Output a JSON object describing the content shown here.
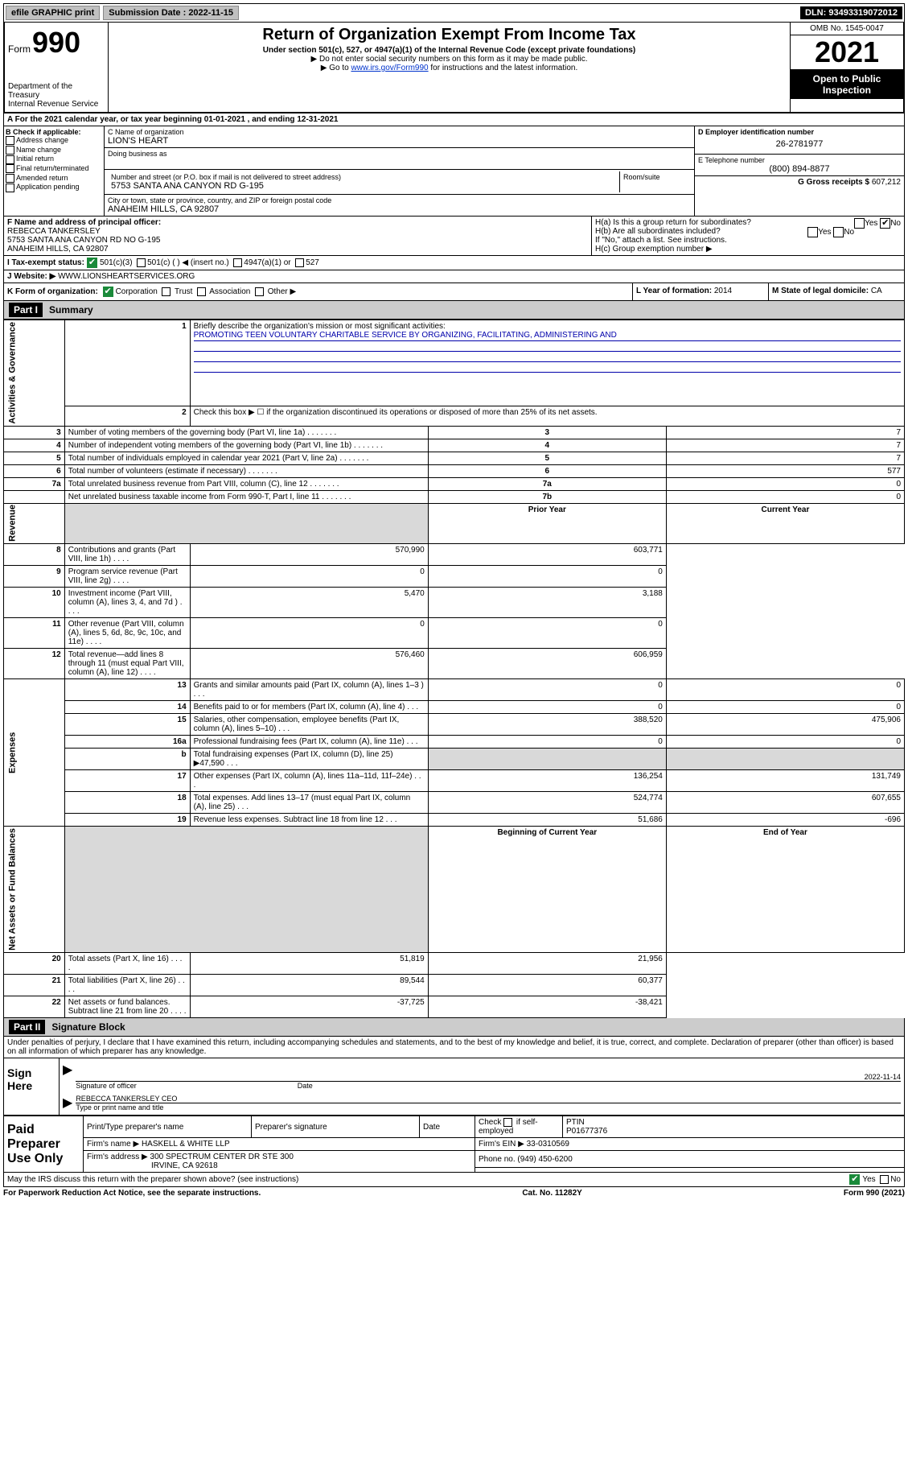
{
  "top": {
    "efile": "efile GRAPHIC print",
    "sub_label": "Submission Date : 2022-11-15",
    "dln": "DLN: 93493319072012"
  },
  "header": {
    "form_word": "Form",
    "form_no": "990",
    "dept": "Department of the Treasury",
    "irs": "Internal Revenue Service",
    "title": "Return of Organization Exempt From Income Tax",
    "sub": "Under section 501(c), 527, or 4947(a)(1) of the Internal Revenue Code (except private foundations)",
    "instr1": "▶ Do not enter social security numbers on this form as it may be made public.",
    "instr2_pre": "▶ Go to ",
    "instr2_link": "www.irs.gov/Form990",
    "instr2_post": " for instructions and the latest information.",
    "omb": "OMB No. 1545-0047",
    "year": "2021",
    "open": "Open to Public Inspection"
  },
  "rowA": "A For the 2021 calendar year, or tax year beginning 01-01-2021   , and ending 12-31-2021",
  "boxB": {
    "label": "B Check if applicable:",
    "items": [
      "Address change",
      "Name change",
      "Initial return",
      "Final return/terminated",
      "Amended return",
      "Application pending"
    ]
  },
  "boxC": {
    "name_lbl": "C Name of organization",
    "name": "LION'S HEART",
    "dba_lbl": "Doing business as",
    "addr_lbl": "Number and street (or P.O. box if mail is not delivered to street address)",
    "room_lbl": "Room/suite",
    "addr": "5753 SANTA ANA CANYON RD G-195",
    "city_lbl": "City or town, state or province, country, and ZIP or foreign postal code",
    "city": "ANAHEIM HILLS, CA  92807"
  },
  "boxD": {
    "lbl": "D Employer identification number",
    "val": "26-2781977"
  },
  "boxE": {
    "lbl": "E Telephone number",
    "val": "(800) 894-8877"
  },
  "boxG": {
    "lbl": "G Gross receipts $",
    "val": "607,212"
  },
  "boxF": {
    "lbl": "F Name and address of principal officer:",
    "l1": "REBECCA TANKERSLEY",
    "l2": "5753 SANTA ANA CANYON RD NO G-195",
    "l3": "ANAHEIM HILLS, CA  92807"
  },
  "boxH": {
    "ha": "H(a)  Is this a group return for subordinates?",
    "hb": "H(b)  Are all subordinates included?",
    "hb2": "If \"No,\" attach a list. See instructions.",
    "hc": "H(c)  Group exemption number ▶",
    "yes": "Yes",
    "no": "No"
  },
  "rowI": {
    "lbl": "I   Tax-exempt status:",
    "o1": "501(c)(3)",
    "o2": "501(c) (  ) ◀ (insert no.)",
    "o3": "4947(a)(1) or",
    "o4": "527"
  },
  "rowJ": {
    "lbl": "J   Website: ▶",
    "val": "WWW.LIONSHEARTSERVICES.ORG"
  },
  "rowK": "K Form of organization:",
  "rowK_opts": [
    "Corporation",
    "Trust",
    "Association",
    "Other ▶"
  ],
  "rowL": {
    "lbl": "L Year of formation:",
    "val": "2014"
  },
  "rowM": {
    "lbl": "M State of legal domicile:",
    "val": "CA"
  },
  "partI": {
    "hdr": "Part I",
    "title": "Summary"
  },
  "summary": {
    "q1": "Briefly describe the organization's mission or most significant activities:",
    "mission": "PROMOTING TEEN VOLUNTARY CHARITABLE SERVICE BY ORGANIZING, FACILITATING, ADMINISTERING AND",
    "q2": "Check this box ▶ ☐  if the organization discontinued its operations or disposed of more than 25% of its net assets.",
    "rows_gov": [
      {
        "n": "3",
        "t": "Number of voting members of the governing body (Part VI, line 1a)",
        "box": "3",
        "v": "7"
      },
      {
        "n": "4",
        "t": "Number of independent voting members of the governing body (Part VI, line 1b)",
        "box": "4",
        "v": "7"
      },
      {
        "n": "5",
        "t": "Total number of individuals employed in calendar year 2021 (Part V, line 2a)",
        "box": "5",
        "v": "7"
      },
      {
        "n": "6",
        "t": "Total number of volunteers (estimate if necessary)",
        "box": "6",
        "v": "577"
      },
      {
        "n": "7a",
        "t": "Total unrelated business revenue from Part VIII, column (C), line 12",
        "box": "7a",
        "v": "0"
      },
      {
        "n": "",
        "t": "Net unrelated business taxable income from Form 990-T, Part I, line 11",
        "box": "7b",
        "v": "0"
      }
    ],
    "py": "Prior Year",
    "cy": "Current Year",
    "rows_rev": [
      {
        "n": "8",
        "t": "Contributions and grants (Part VIII, line 1h)",
        "p": "570,990",
        "c": "603,771"
      },
      {
        "n": "9",
        "t": "Program service revenue (Part VIII, line 2g)",
        "p": "0",
        "c": "0"
      },
      {
        "n": "10",
        "t": "Investment income (Part VIII, column (A), lines 3, 4, and 7d )",
        "p": "5,470",
        "c": "3,188"
      },
      {
        "n": "11",
        "t": "Other revenue (Part VIII, column (A), lines 5, 6d, 8c, 9c, 10c, and 11e)",
        "p": "0",
        "c": "0"
      },
      {
        "n": "12",
        "t": "Total revenue—add lines 8 through 11 (must equal Part VIII, column (A), line 12)",
        "p": "576,460",
        "c": "606,959"
      }
    ],
    "rows_exp": [
      {
        "n": "13",
        "t": "Grants and similar amounts paid (Part IX, column (A), lines 1–3 )",
        "p": "0",
        "c": "0"
      },
      {
        "n": "14",
        "t": "Benefits paid to or for members (Part IX, column (A), line 4)",
        "p": "0",
        "c": "0"
      },
      {
        "n": "15",
        "t": "Salaries, other compensation, employee benefits (Part IX, column (A), lines 5–10)",
        "p": "388,520",
        "c": "475,906"
      },
      {
        "n": "16a",
        "t": "Professional fundraising fees (Part IX, column (A), line 11e)",
        "p": "0",
        "c": "0"
      },
      {
        "n": "b",
        "t": "Total fundraising expenses (Part IX, column (D), line 25) ▶47,590",
        "p": "",
        "c": "",
        "grey": true
      },
      {
        "n": "17",
        "t": "Other expenses (Part IX, column (A), lines 11a–11d, 11f–24e)",
        "p": "136,254",
        "c": "131,749"
      },
      {
        "n": "18",
        "t": "Total expenses. Add lines 13–17 (must equal Part IX, column (A), line 25)",
        "p": "524,774",
        "c": "607,655"
      },
      {
        "n": "19",
        "t": "Revenue less expenses. Subtract line 18 from line 12",
        "p": "51,686",
        "c": "-696"
      }
    ],
    "boy": "Beginning of Current Year",
    "eoy": "End of Year",
    "rows_net": [
      {
        "n": "20",
        "t": "Total assets (Part X, line 16)",
        "p": "51,819",
        "c": "21,956"
      },
      {
        "n": "21",
        "t": "Total liabilities (Part X, line 26)",
        "p": "89,544",
        "c": "60,377"
      },
      {
        "n": "22",
        "t": "Net assets or fund balances. Subtract line 21 from line 20",
        "p": "-37,725",
        "c": "-38,421"
      }
    ],
    "side_gov": "Activities & Governance",
    "side_rev": "Revenue",
    "side_exp": "Expenses",
    "side_net": "Net Assets or Fund Balances"
  },
  "partII": {
    "hdr": "Part II",
    "title": "Signature Block"
  },
  "sig": {
    "decl": "Under penalties of perjury, I declare that I have examined this return, including accompanying schedules and statements, and to the best of my knowledge and belief, it is true, correct, and complete. Declaration of preparer (other than officer) is based on all information of which preparer has any knowledge.",
    "sign_here": "Sign Here",
    "sig_of": "Signature of officer",
    "date_lbl": "Date",
    "date": "2022-11-14",
    "name": "REBECCA TANKERSLEY CEO",
    "name_lbl": "Type or print name and title"
  },
  "prep": {
    "paid": "Paid Preparer Use Only",
    "h1": "Print/Type preparer's name",
    "h2": "Preparer's signature",
    "h3": "Date",
    "h4_a": "Check",
    "h4_b": "if self-employed",
    "h5": "PTIN",
    "ptin": "P01677376",
    "firm_lbl": "Firm's name   ▶",
    "firm": "HASKELL & WHITE LLP",
    "ein_lbl": "Firm's EIN ▶",
    "ein": "33-0310569",
    "addr_lbl": "Firm's address ▶",
    "addr1": "300 SPECTRUM CENTER DR STE 300",
    "addr2": "IRVINE, CA  92618",
    "phone_lbl": "Phone no.",
    "phone": "(949) 450-6200",
    "discuss": "May the IRS discuss this return with the preparer shown above? (see instructions)",
    "yes": "Yes",
    "no": "No"
  },
  "footer": {
    "l": "For Paperwork Reduction Act Notice, see the separate instructions.",
    "m": "Cat. No. 11282Y",
    "r": "Form 990 (2021)"
  }
}
